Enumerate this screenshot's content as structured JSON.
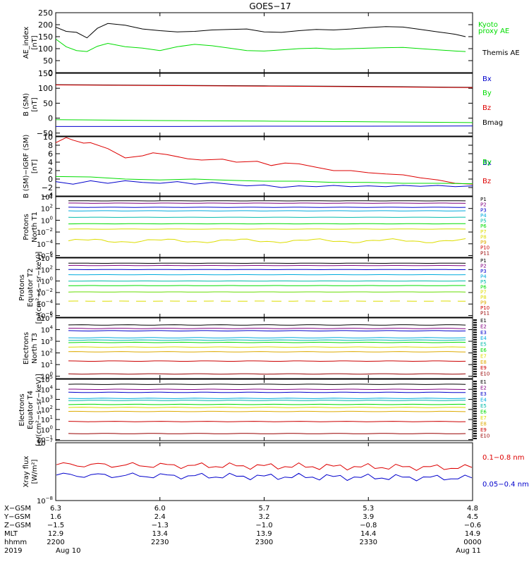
{
  "title": "GOES−17",
  "colors": {
    "black": "#000000",
    "green": "#00dd00",
    "blue": "#0000cc",
    "red": "#dd0000",
    "navy": "#000080",
    "purple": "#800080",
    "cyan": "#00aadd",
    "teal": "#00bbaa",
    "lime": "#66dd00",
    "yellow": "#dddd00",
    "orange": "#ddaa00",
    "crimson": "#cc0000",
    "maroon": "#990000"
  },
  "time": {
    "ticks": [
      2200,
      2230,
      2300,
      2330,
      0
    ],
    "range_minutes": [
      0,
      120
    ]
  },
  "chart_data": [
    {
      "type": "line",
      "id": "ae",
      "ylabel": [
        "AE_index",
        "[nT]"
      ],
      "ylim": [
        0,
        250
      ],
      "yticks": [
        "250",
        "200",
        "150",
        "100",
        "50",
        "0"
      ],
      "ytick_values": [
        250,
        200,
        150,
        100,
        50,
        0
      ],
      "legend": [
        {
          "label": "Kyoto",
          "color": "green"
        },
        {
          "label": "proxy AE",
          "color": "green"
        },
        {
          "label": "Themis AE",
          "color": "black"
        }
      ],
      "series": [
        {
          "name": "Themis AE",
          "color": "black",
          "x": [
            0,
            3,
            6,
            9,
            12,
            15,
            20,
            25,
            30,
            35,
            40,
            45,
            50,
            55,
            60,
            65,
            70,
            75,
            80,
            85,
            90,
            95,
            100,
            105,
            110,
            115,
            118
          ],
          "y": [
            190,
            172,
            168,
            145,
            185,
            205,
            198,
            182,
            175,
            170,
            172,
            178,
            180,
            182,
            170,
            168,
            175,
            180,
            178,
            182,
            188,
            192,
            190,
            180,
            170,
            160,
            150
          ]
        },
        {
          "name": "Kyoto proxy AE",
          "color": "green",
          "x": [
            0,
            3,
            6,
            9,
            12,
            15,
            20,
            25,
            30,
            35,
            40,
            45,
            50,
            55,
            60,
            65,
            70,
            75,
            80,
            85,
            90,
            95,
            100,
            105,
            110,
            115,
            118
          ],
          "y": [
            140,
            108,
            92,
            88,
            110,
            122,
            108,
            102,
            92,
            108,
            118,
            112,
            102,
            92,
            90,
            95,
            100,
            102,
            98,
            100,
            102,
            104,
            105,
            100,
            95,
            90,
            88
          ]
        }
      ]
    },
    {
      "type": "line",
      "id": "bsm",
      "ylabel": [
        "B (SM)",
        "[nT]"
      ],
      "ylim": [
        -60,
        150
      ],
      "yticks": [
        "150",
        "100",
        "50",
        "0",
        "−50"
      ],
      "ytick_values": [
        150,
        100,
        50,
        0,
        -50
      ],
      "legend": [
        {
          "label": "Bx",
          "color": "blue"
        },
        {
          "label": "By",
          "color": "green"
        },
        {
          "label": "Bz",
          "color": "red"
        },
        {
          "label": "Bmag",
          "color": "black"
        }
      ],
      "series": [
        {
          "name": "Bmag",
          "color": "black",
          "x": [
            0,
            30,
            60,
            90,
            120
          ],
          "y": [
            112,
            110,
            108,
            106,
            103
          ]
        },
        {
          "name": "Bz",
          "color": "red",
          "x": [
            0,
            30,
            60,
            90,
            120
          ],
          "y": [
            111,
            109,
            107,
            105,
            102
          ]
        },
        {
          "name": "By",
          "color": "green",
          "x": [
            0,
            30,
            60,
            90,
            120
          ],
          "y": [
            -5,
            -8,
            -10,
            -12,
            -15
          ]
        },
        {
          "name": "Bx",
          "color": "blue",
          "x": [
            0,
            30,
            60,
            90,
            120
          ],
          "y": [
            -28,
            -28,
            -27,
            -27,
            -26
          ]
        }
      ]
    },
    {
      "type": "line",
      "id": "bigrf",
      "ylabel": [
        "B (SM)−IGRF (SM)",
        "[nT]"
      ],
      "ylim": [
        -4,
        10
      ],
      "yticks": [
        "10",
        "8",
        "6",
        "4",
        "2",
        "0",
        "−2",
        "−4"
      ],
      "ytick_values": [
        10,
        8,
        6,
        4,
        2,
        0,
        -2,
        -4
      ],
      "legend": [
        {
          "label": "Bx",
          "color": "blue"
        },
        {
          "label": "By",
          "color": "green"
        },
        {
          "label": "Bz",
          "color": "red"
        }
      ],
      "series": [
        {
          "name": "Bz",
          "color": "red",
          "x": [
            0,
            3,
            5,
            8,
            10,
            15,
            20,
            25,
            28,
            32,
            38,
            42,
            48,
            52,
            58,
            62,
            66,
            70,
            75,
            80,
            85,
            90,
            95,
            100,
            105,
            110,
            115,
            120
          ],
          "y": [
            8.6,
            9.8,
            9.2,
            8.5,
            8.6,
            7.2,
            5.0,
            5.5,
            6.2,
            5.8,
            4.8,
            4.5,
            4.7,
            4.0,
            4.2,
            3.2,
            3.8,
            3.6,
            2.8,
            2.0,
            2.0,
            1.5,
            1.2,
            1.0,
            0.3,
            -0.2,
            -1.0,
            -1.2
          ]
        },
        {
          "name": "By",
          "color": "green",
          "x": [
            0,
            10,
            20,
            30,
            40,
            50,
            60,
            70,
            80,
            90,
            100,
            110,
            120
          ],
          "y": [
            0.6,
            0.5,
            0.0,
            -0.2,
            0.0,
            -0.3,
            -0.5,
            -0.5,
            -0.8,
            -0.8,
            -1.0,
            -1.0,
            -1.1
          ]
        },
        {
          "name": "Bx",
          "color": "blue",
          "x": [
            0,
            5,
            10,
            15,
            20,
            25,
            30,
            35,
            40,
            45,
            50,
            55,
            60,
            65,
            70,
            75,
            80,
            85,
            90,
            95,
            100,
            105,
            110,
            115,
            120
          ],
          "y": [
            -0.6,
            -1.2,
            -0.4,
            -1.0,
            -0.4,
            -0.8,
            -1.0,
            -0.6,
            -1.2,
            -0.8,
            -1.2,
            -1.6,
            -1.4,
            -2.0,
            -1.6,
            -1.8,
            -1.5,
            -1.8,
            -1.6,
            -1.8,
            -1.5,
            -1.7,
            -1.5,
            -1.8,
            -1.6
          ]
        }
      ]
    },
    {
      "type": "line",
      "id": "pnorth",
      "log": true,
      "ylabel": [
        "Protons",
        "North T1"
      ],
      "ylim_exp": [
        -6.3,
        4
      ],
      "yticks_exp": [
        4,
        2,
        0,
        -2,
        -4,
        -6
      ],
      "legend": [
        {
          "label": "P1",
          "color": "black"
        },
        {
          "label": "P2",
          "color": "purple"
        },
        {
          "label": "P3",
          "color": "blue"
        },
        {
          "label": "P4",
          "color": "cyan"
        },
        {
          "label": "P5",
          "color": "teal"
        },
        {
          "label": "P6",
          "color": "green"
        },
        {
          "label": "P7",
          "color": "yellow"
        },
        {
          "label": "P8",
          "color": "yellow"
        },
        {
          "label": "P9",
          "color": "orange"
        },
        {
          "label": "P10",
          "color": "crimson"
        },
        {
          "label": "P11",
          "color": "maroon"
        }
      ],
      "series": [
        {
          "name": "P1",
          "color": "black",
          "level": 3.3
        },
        {
          "name": "P2",
          "color": "purple",
          "level": 2.9
        },
        {
          "name": "P3",
          "color": "blue",
          "level": 2.2
        },
        {
          "name": "P4",
          "color": "cyan",
          "level": 1.6
        },
        {
          "name": "P5",
          "color": "teal",
          "level": 0.5
        },
        {
          "name": "P6",
          "color": "green",
          "level": -0.6
        },
        {
          "name": "P7",
          "color": "yellow",
          "level": -1.5
        },
        {
          "name": "P8",
          "color": "yellow",
          "level": -3.5,
          "wavy": true
        }
      ]
    },
    {
      "type": "line",
      "id": "pequator",
      "log": true,
      "ylabel": [
        "Protons",
        "Equator T2",
        "[p/(cm²−s−sr−keV)]"
      ],
      "ylim_exp": [
        -6.3,
        4
      ],
      "yticks_exp": [
        4,
        2,
        0,
        -2,
        -4,
        -6
      ],
      "legend": [
        {
          "label": "P1",
          "color": "black"
        },
        {
          "label": "P2",
          "color": "purple"
        },
        {
          "label": "P3",
          "color": "blue"
        },
        {
          "label": "P4",
          "color": "cyan"
        },
        {
          "label": "P5",
          "color": "teal"
        },
        {
          "label": "P6",
          "color": "green"
        },
        {
          "label": "P7",
          "color": "yellow"
        },
        {
          "label": "P8",
          "color": "yellow"
        },
        {
          "label": "P9",
          "color": "orange"
        },
        {
          "label": "P10",
          "color": "crimson"
        },
        {
          "label": "P11",
          "color": "maroon"
        }
      ],
      "series": [
        {
          "name": "P1",
          "color": "black",
          "level": 3.1
        },
        {
          "name": "P2",
          "color": "purple",
          "level": 2.7
        },
        {
          "name": "P3",
          "color": "blue",
          "level": 2.0
        },
        {
          "name": "P4",
          "color": "cyan",
          "level": 1.1
        },
        {
          "name": "P5",
          "color": "teal",
          "level": 0.0
        },
        {
          "name": "P6",
          "color": "green",
          "level": -0.8
        },
        {
          "name": "P7",
          "color": "lime",
          "level": -1.9
        },
        {
          "name": "P8",
          "color": "yellow",
          "level": -3.5,
          "dashed": true
        }
      ]
    },
    {
      "type": "line",
      "id": "enorth",
      "log": true,
      "ylabel": [
        "Electrons",
        "North T3"
      ],
      "ylim_exp": [
        -0.2,
        5
      ],
      "yticks_exp": [
        5,
        4,
        3,
        2,
        1,
        0
      ],
      "legend": [
        {
          "label": "E1",
          "color": "black"
        },
        {
          "label": "E2",
          "color": "purple"
        },
        {
          "label": "E3",
          "color": "blue"
        },
        {
          "label": "E4",
          "color": "cyan"
        },
        {
          "label": "E5",
          "color": "teal"
        },
        {
          "label": "E6",
          "color": "green"
        },
        {
          "label": "E7",
          "color": "yellow"
        },
        {
          "label": "E8",
          "color": "orange"
        },
        {
          "label": "E9",
          "color": "crimson"
        },
        {
          "label": "E10",
          "color": "maroon"
        }
      ],
      "series": [
        {
          "name": "E1",
          "color": "black",
          "level": 4.4
        },
        {
          "name": "E2",
          "color": "purple",
          "level": 4.1
        },
        {
          "name": "E3",
          "color": "blue",
          "level": 3.9
        },
        {
          "name": "E4",
          "color": "cyan",
          "level": 3.3
        },
        {
          "name": "E5",
          "color": "teal",
          "level": 3.1
        },
        {
          "name": "E6",
          "color": "green",
          "level": 2.9
        },
        {
          "name": "E7",
          "color": "yellow",
          "level": 2.5
        },
        {
          "name": "E8",
          "color": "orange",
          "level": 2.1
        },
        {
          "name": "E9",
          "color": "crimson",
          "level": 1.3
        },
        {
          "name": "E10",
          "color": "maroon",
          "level": 0.2
        }
      ]
    },
    {
      "type": "line",
      "id": "eequator",
      "log": true,
      "ylabel": [
        "Electrons",
        "Equator T4",
        "[e/(cm²−s−sr−keV)]"
      ],
      "ylim_exp": [
        -1.1,
        5
      ],
      "yticks_exp": [
        5,
        4,
        3,
        2,
        1,
        0,
        -1
      ],
      "legend": [
        {
          "label": "E1",
          "color": "black"
        },
        {
          "label": "E2",
          "color": "purple"
        },
        {
          "label": "E3",
          "color": "blue"
        },
        {
          "label": "E4",
          "color": "cyan"
        },
        {
          "label": "E5",
          "color": "teal"
        },
        {
          "label": "E6",
          "color": "green"
        },
        {
          "label": "E7",
          "color": "yellow"
        },
        {
          "label": "E8",
          "color": "orange"
        },
        {
          "label": "E9",
          "color": "crimson"
        },
        {
          "label": "E10",
          "color": "maroon"
        }
      ],
      "series": [
        {
          "name": "E1",
          "color": "black",
          "level": 4.5
        },
        {
          "name": "E2",
          "color": "purple",
          "level": 4.0
        },
        {
          "name": "E3",
          "color": "blue",
          "level": 3.7
        },
        {
          "name": "E4",
          "color": "cyan",
          "level": 3.1
        },
        {
          "name": "E5",
          "color": "teal",
          "level": 2.9
        },
        {
          "name": "E6",
          "color": "green",
          "level": 2.5
        },
        {
          "name": "E7",
          "color": "yellow",
          "level": 2.2
        },
        {
          "name": "E8",
          "color": "orange",
          "level": 1.8
        },
        {
          "name": "E9",
          "color": "crimson",
          "level": 0.8
        },
        {
          "name": "E10",
          "color": "maroon",
          "level": -0.4
        }
      ]
    },
    {
      "type": "line",
      "id": "xray",
      "log": true,
      "ylabel": [
        "Xray flux",
        "[W/m²]"
      ],
      "ylim_exp": [
        -8,
        -7
      ],
      "yticks_exp": [
        -7,
        -8
      ],
      "legend": [
        {
          "label": "0.1−0.8 nm",
          "color": "red"
        },
        {
          "label": "0.05−0.4 nm",
          "color": "blue"
        }
      ],
      "series": [
        {
          "name": "0.1−0.8 nm",
          "color": "red",
          "level": -7.38
        },
        {
          "name": "0.05−0.4 nm",
          "color": "blue",
          "level": -7.56
        }
      ]
    }
  ],
  "ephemeris": {
    "labels": [
      "X−GSM",
      "Y−GSM",
      "Z−GSM",
      "MLT",
      "hhmm",
      "2019"
    ],
    "columns": [
      [
        "6.3",
        "1.6",
        "−1.5",
        "12.9",
        "2200",
        "Aug 10"
      ],
      [
        "6.0",
        "2.4",
        "−1.3",
        "13.4",
        "2230",
        ""
      ],
      [
        "5.7",
        "3.2",
        "−1.0",
        "13.9",
        "2300",
        ""
      ],
      [
        "5.3",
        "3.9",
        "−0.8",
        "14.4",
        "2330",
        ""
      ],
      [
        "4.8",
        "4.5",
        "−0.6",
        "14.9",
        "0000",
        "Aug 11"
      ]
    ]
  }
}
